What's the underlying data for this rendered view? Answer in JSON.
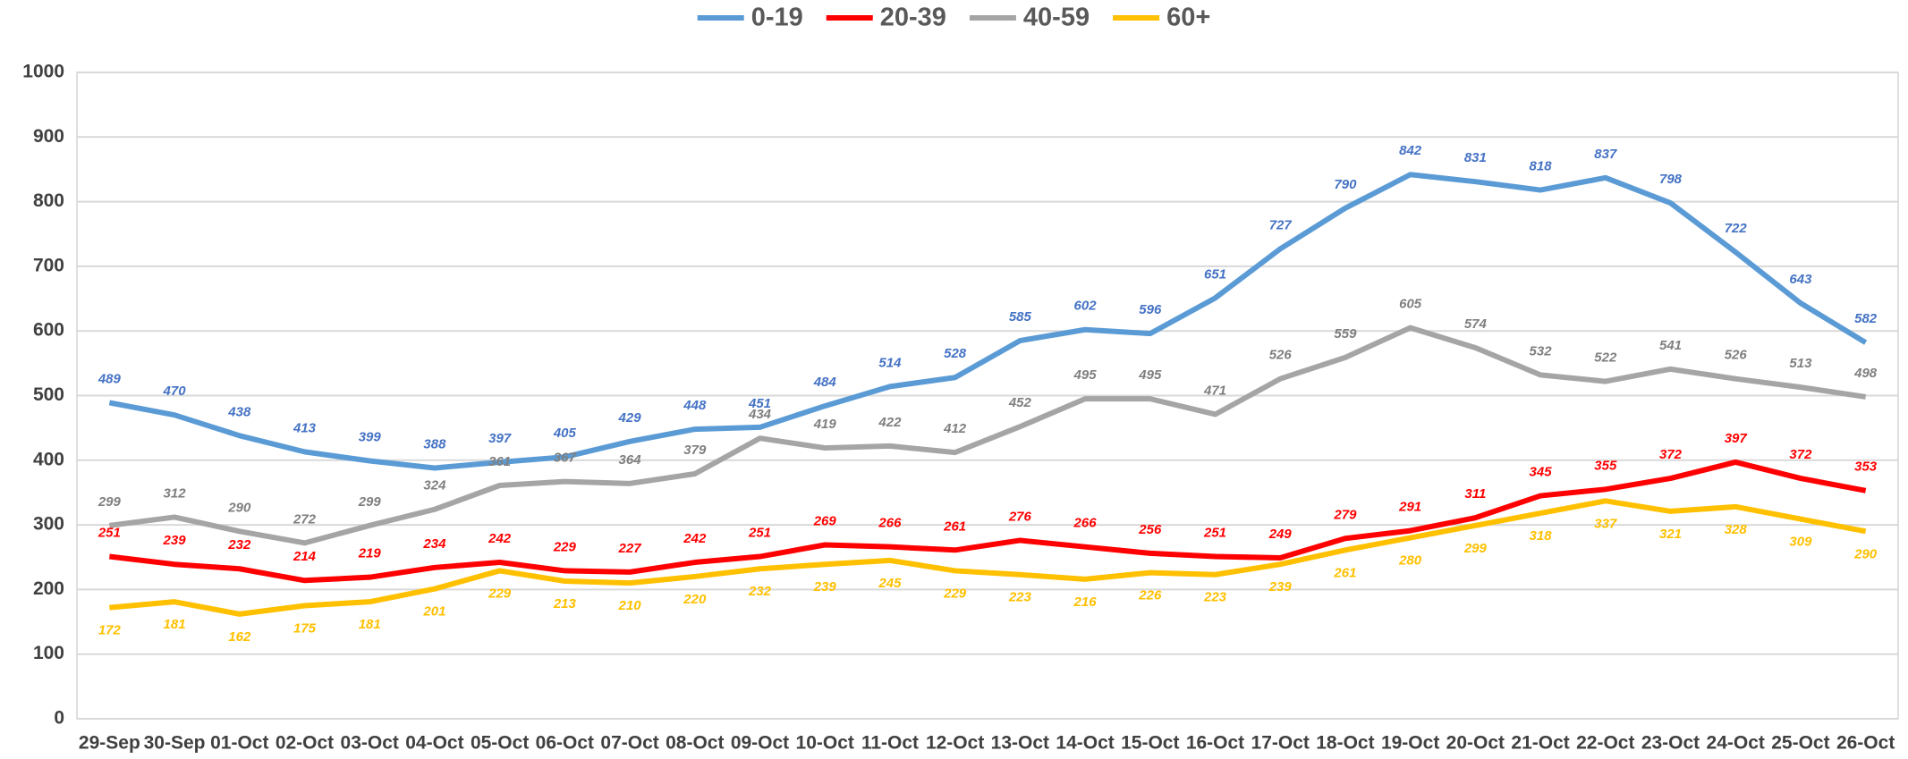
{
  "chart_data": {
    "type": "line",
    "categories": [
      "29-Sep",
      "30-Sep",
      "01-Oct",
      "02-Oct",
      "03-Oct",
      "04-Oct",
      "05-Oct",
      "06-Oct",
      "07-Oct",
      "08-Oct",
      "09-Oct",
      "10-Oct",
      "11-Oct",
      "12-Oct",
      "13-Oct",
      "14-Oct",
      "15-Oct",
      "16-Oct",
      "17-Oct",
      "18-Oct",
      "19-Oct",
      "20-Oct",
      "21-Oct",
      "22-Oct",
      "23-Oct",
      "24-Oct",
      "25-Oct",
      "26-Oct"
    ],
    "series": [
      {
        "name": "0-19",
        "color": "#5b9bd5",
        "label_color": "#4472c4",
        "values": [
          489,
          470,
          438,
          413,
          399,
          388,
          397,
          405,
          429,
          448,
          451,
          484,
          514,
          528,
          585,
          602,
          596,
          651,
          727,
          790,
          842,
          831,
          818,
          837,
          798,
          722,
          643,
          582
        ]
      },
      {
        "name": "20-39",
        "color": "#ff0000",
        "label_color": "#ff0000",
        "values": [
          251,
          239,
          232,
          214,
          219,
          234,
          242,
          229,
          227,
          242,
          251,
          269,
          266,
          261,
          276,
          266,
          256,
          251,
          249,
          279,
          291,
          311,
          345,
          355,
          372,
          397,
          372,
          353
        ]
      },
      {
        "name": "40-59",
        "color": "#a5a5a5",
        "label_color": "#7f7f7f",
        "values": [
          299,
          312,
          290,
          272,
          299,
          324,
          361,
          367,
          364,
          379,
          434,
          419,
          422,
          412,
          452,
          495,
          495,
          471,
          526,
          559,
          605,
          574,
          532,
          522,
          541,
          526,
          513,
          498
        ]
      },
      {
        "name": "60+",
        "color": "#ffc000",
        "label_color": "#ffc000",
        "values": [
          172,
          181,
          162,
          175,
          181,
          201,
          229,
          213,
          210,
          220,
          232,
          239,
          245,
          229,
          223,
          216,
          226,
          223,
          239,
          261,
          280,
          299,
          318,
          337,
          321,
          328,
          309,
          290
        ]
      }
    ],
    "ylim": [
      0,
      1000
    ],
    "yticks": [
      0,
      100,
      200,
      300,
      400,
      500,
      600,
      700,
      800,
      900,
      1000
    ],
    "grid": true,
    "legend": "top"
  }
}
